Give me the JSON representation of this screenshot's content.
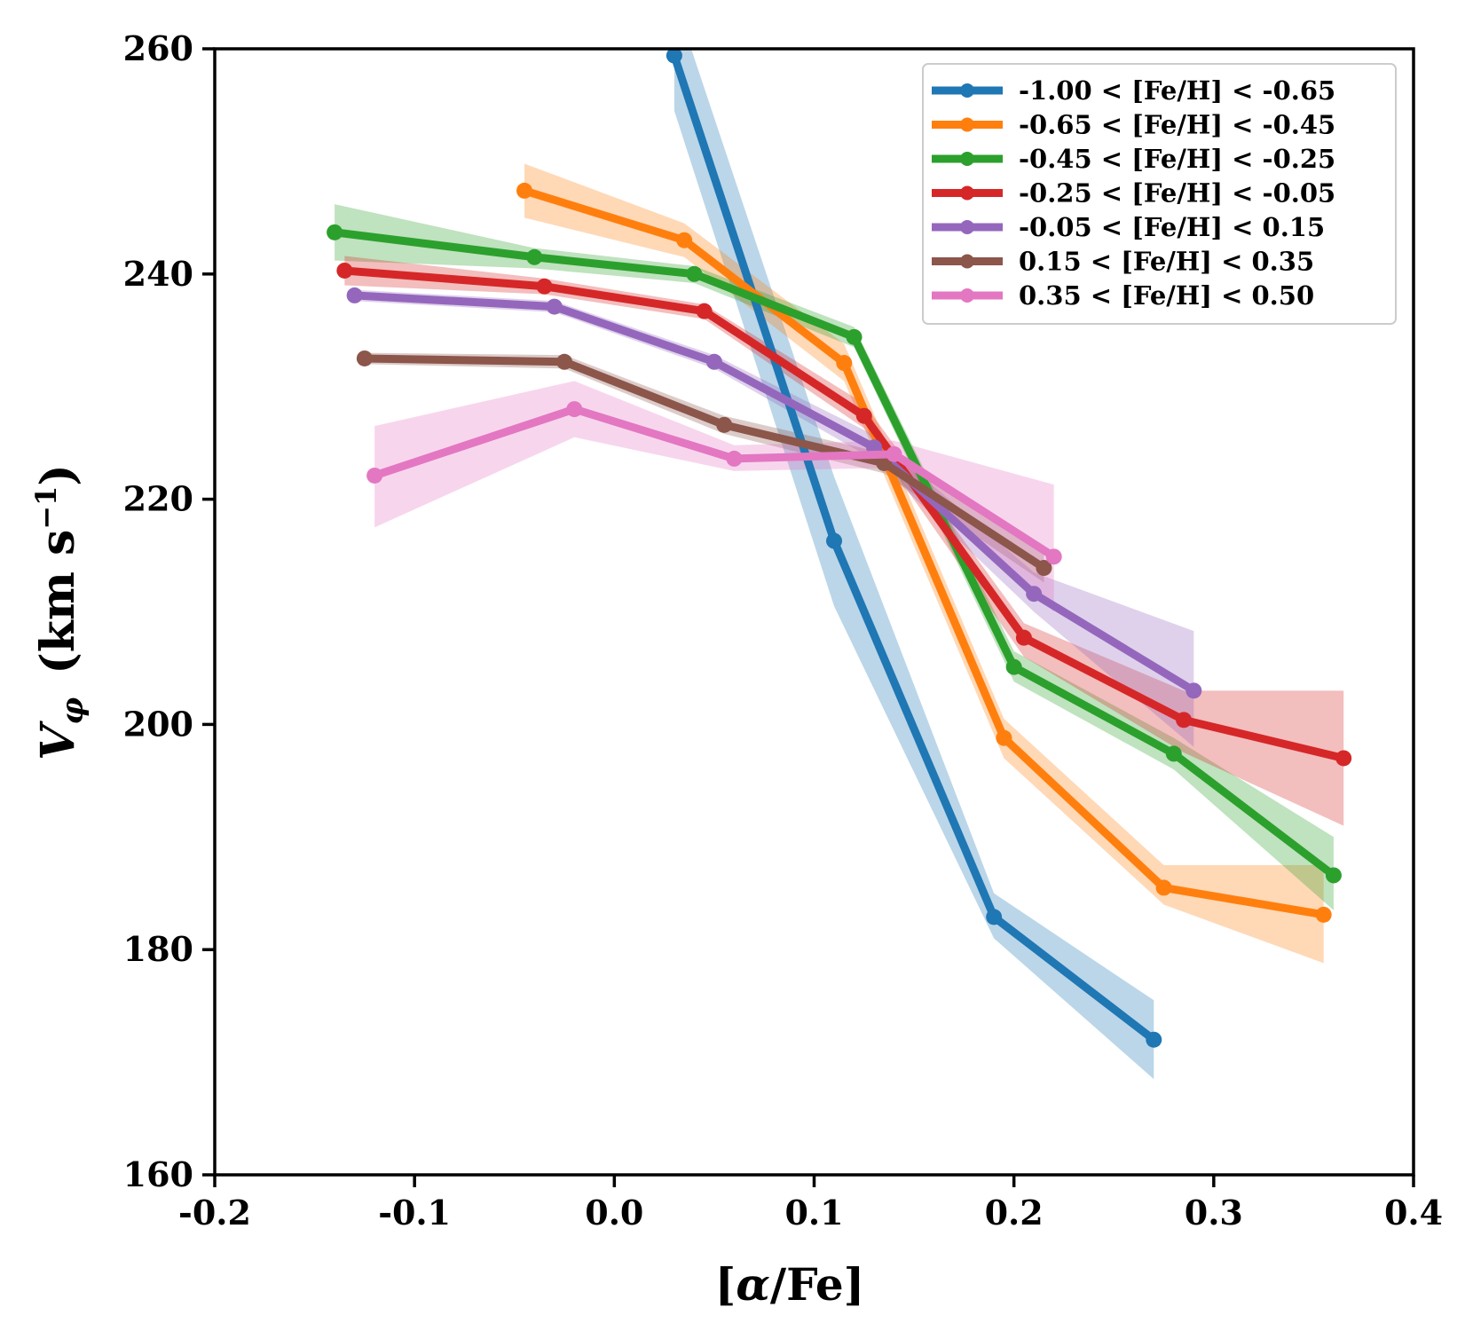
{
  "chart_data": {
    "type": "line",
    "xlabel": "[α/Fe]",
    "ylabel": "V_φ (km s⁻¹)",
    "ylabel_parts": {
      "main": "V",
      "sub": "φ",
      "units": "(km s",
      "exp": "−1",
      "close": ")"
    },
    "xlim": [
      -0.2,
      0.4
    ],
    "ylim": [
      160,
      260
    ],
    "xticks": [
      -0.2,
      -0.1,
      0.0,
      0.1,
      0.2,
      0.3,
      0.4
    ],
    "xtick_labels": [
      "-0.2",
      "-0.1",
      "0.0",
      "0.1",
      "0.2",
      "0.3",
      "0.4"
    ],
    "yticks": [
      160,
      180,
      200,
      220,
      240,
      260
    ],
    "ytick_labels": [
      "160",
      "180",
      "200",
      "220",
      "240",
      "260"
    ],
    "legend_position": "top-right",
    "series": [
      {
        "name": "-1.00  < [Fe/H] <  -0.65",
        "color": "#1f77b4",
        "x": [
          0.03,
          0.11,
          0.19,
          0.27
        ],
        "y": [
          259.4,
          216.3,
          182.9,
          172.0
        ],
        "lo": [
          254.5,
          210.5,
          181.0,
          168.5
        ],
        "hi": [
          264.5,
          222.0,
          185.0,
          175.5
        ]
      },
      {
        "name": "-0.65  < [Fe/H] <  -0.45",
        "color": "#ff7f0e",
        "x": [
          -0.045,
          0.035,
          0.115,
          0.195,
          0.275,
          0.355
        ],
        "y": [
          247.4,
          243.0,
          232.1,
          198.8,
          185.5,
          183.1
        ],
        "lo": [
          245.0,
          241.5,
          230.5,
          197.0,
          184.0,
          178.8
        ],
        "hi": [
          249.8,
          244.5,
          233.8,
          200.5,
          187.5,
          187.5
        ]
      },
      {
        "name": "-0.45  < [Fe/H] <  -0.25",
        "color": "#2ca02c",
        "x": [
          -0.14,
          -0.04,
          0.04,
          0.12,
          0.2,
          0.28,
          0.36
        ],
        "y": [
          243.7,
          241.5,
          240.0,
          234.4,
          205.1,
          197.4,
          186.6
        ],
        "lo": [
          241.2,
          240.5,
          239.2,
          233.5,
          203.8,
          196.0,
          183.5
        ],
        "hi": [
          246.2,
          242.3,
          240.7,
          235.3,
          206.5,
          198.8,
          190.0
        ]
      },
      {
        "name": "-0.25  < [Fe/H] <  -0.05",
        "color": "#d62728",
        "x": [
          -0.135,
          -0.035,
          0.045,
          0.125,
          0.205,
          0.285,
          0.365
        ],
        "y": [
          240.3,
          238.9,
          236.7,
          227.4,
          207.7,
          200.4,
          197.0
        ],
        "lo": [
          239.0,
          238.2,
          236.0,
          226.3,
          206.0,
          197.5,
          191.0
        ],
        "hi": [
          241.6,
          239.6,
          237.3,
          228.5,
          209.0,
          203.0,
          203.0
        ]
      },
      {
        "name": "-0.05  < [Fe/H] <  0.15",
        "color": "#9467bd",
        "x": [
          -0.13,
          -0.03,
          0.05,
          0.13,
          0.21,
          0.29
        ],
        "y": [
          238.1,
          237.1,
          232.2,
          224.6,
          211.6,
          203.0
        ],
        "lo": [
          237.6,
          236.6,
          231.6,
          223.5,
          210.0,
          198.0
        ],
        "hi": [
          238.6,
          237.6,
          232.8,
          225.7,
          213.5,
          208.3
        ]
      },
      {
        "name": "0.15  < [Fe/H] <  0.35",
        "color": "#8c564b",
        "x": [
          -0.125,
          -0.025,
          0.055,
          0.135,
          0.215
        ],
        "y": [
          232.5,
          232.2,
          226.6,
          223.2,
          213.9
        ],
        "lo": [
          232.0,
          231.6,
          225.8,
          222.3,
          212.6
        ],
        "hi": [
          233.0,
          232.8,
          227.4,
          224.1,
          215.2
        ]
      },
      {
        "name": "0.35  < [Fe/H] <  0.50",
        "color": "#e377c2",
        "x": [
          -0.12,
          -0.02,
          0.06,
          0.14,
          0.22
        ],
        "y": [
          222.1,
          228.0,
          223.6,
          224.0,
          214.9
        ],
        "lo": [
          217.5,
          225.5,
          222.5,
          222.8,
          210.0
        ],
        "hi": [
          226.5,
          230.5,
          224.8,
          225.2,
          221.3
        ]
      }
    ]
  }
}
